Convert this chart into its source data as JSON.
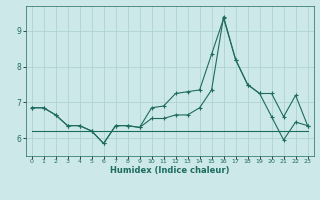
{
  "xlabel": "Humidex (Indice chaleur)",
  "x": [
    0,
    1,
    2,
    3,
    4,
    5,
    6,
    7,
    8,
    9,
    10,
    11,
    12,
    13,
    14,
    15,
    16,
    17,
    18,
    19,
    20,
    21,
    22,
    23
  ],
  "line1_y": [
    6.85,
    6.85,
    6.65,
    6.35,
    6.35,
    6.2,
    5.85,
    6.35,
    6.35,
    6.3,
    6.85,
    6.9,
    7.25,
    7.3,
    7.35,
    8.35,
    9.35,
    8.2,
    7.5,
    7.25,
    7.25,
    6.6,
    7.2,
    6.35
  ],
  "line2_y": [
    6.85,
    6.85,
    6.65,
    6.35,
    6.35,
    6.2,
    5.85,
    6.35,
    6.35,
    6.3,
    6.55,
    6.55,
    6.65,
    6.65,
    6.85,
    7.35,
    9.4,
    8.2,
    7.5,
    7.25,
    6.6,
    5.95,
    6.45,
    6.35
  ],
  "line3_y": [
    6.2,
    6.2,
    6.2,
    6.2,
    6.2,
    6.2,
    6.2,
    6.2,
    6.2,
    6.2,
    6.2,
    6.2,
    6.2,
    6.2,
    6.2,
    6.2,
    6.2,
    6.2,
    6.2,
    6.2,
    6.2,
    6.2,
    6.2,
    6.2
  ],
  "line_color": "#1e6b60",
  "bg_color": "#cce8e8",
  "grid_color": "#aacece",
  "ylim": [
    5.5,
    9.7
  ],
  "xlim": [
    -0.5,
    23.5
  ],
  "yticks": [
    6,
    7,
    8,
    9
  ],
  "xticks": [
    0,
    1,
    2,
    3,
    4,
    5,
    6,
    7,
    8,
    9,
    10,
    11,
    12,
    13,
    14,
    15,
    16,
    17,
    18,
    19,
    20,
    21,
    22,
    23
  ],
  "markersize": 3,
  "linewidth": 0.8
}
